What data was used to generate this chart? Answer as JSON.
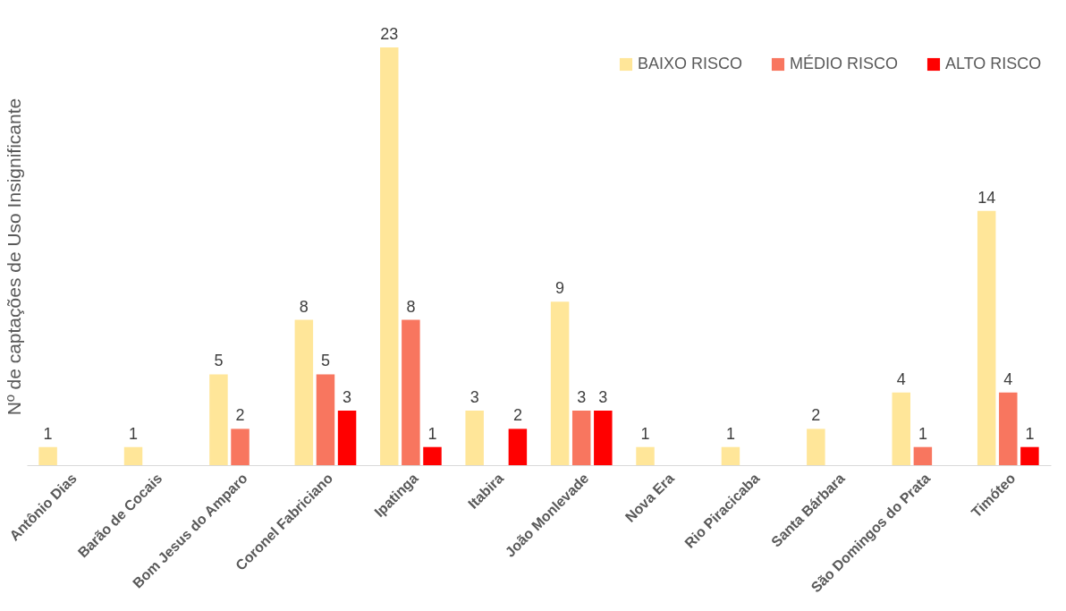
{
  "chart_data": {
    "type": "bar",
    "ylabel": "Nº de captações de Uso Insignificante",
    "categories": [
      "Antônio Dias",
      "Barão de Cocais",
      "Bom Jesus do Amparo",
      "Coronel Fabriciano",
      "Ipatinga",
      "Itabira",
      "João Monlevade",
      "Nova Era",
      "Rio Piracicaba",
      "Santa Bárbara",
      "São Domingos do Prata",
      "Timóteo"
    ],
    "series": [
      {
        "name": "BAIXO RISCO",
        "color": "#ffe699",
        "values": [
          1,
          1,
          5,
          8,
          23,
          3,
          9,
          1,
          1,
          2,
          4,
          14
        ]
      },
      {
        "name": "MÉDIO RISCO",
        "color": "#f8765f",
        "values": [
          null,
          null,
          2,
          5,
          8,
          null,
          3,
          null,
          null,
          null,
          1,
          4
        ]
      },
      {
        "name": "ALTO RISCO",
        "color": "#ff0000",
        "values": [
          null,
          null,
          null,
          3,
          1,
          2,
          3,
          null,
          null,
          null,
          null,
          1
        ]
      }
    ],
    "ylim": [
      0,
      23
    ],
    "tick_labels": "x",
    "data_labels": true,
    "legend": "top right",
    "grid": false
  }
}
